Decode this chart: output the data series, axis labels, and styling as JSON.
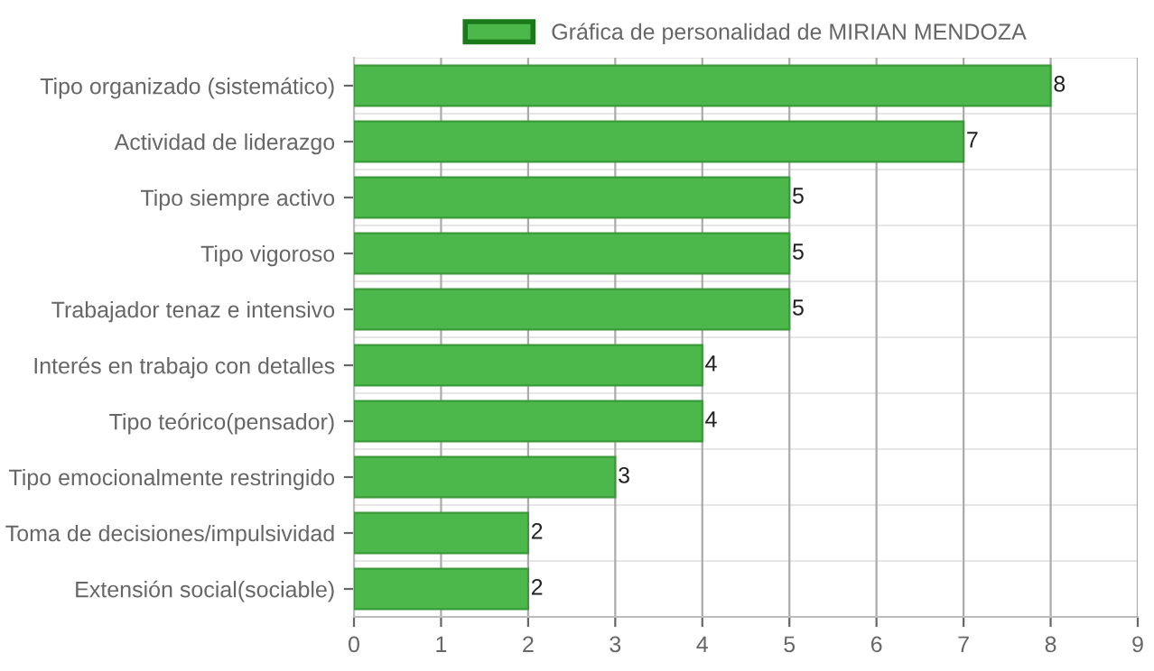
{
  "chart_data": {
    "type": "bar",
    "orientation": "horizontal",
    "categories": [
      "Tipo organizado (sistemático)",
      "Actividad de liderazgo",
      "Tipo siempre activo",
      "Tipo vigoroso",
      "Trabajador tenaz e intensivo",
      "Interés en trabajo con detalles",
      "Tipo teórico(pensador)",
      "Tipo emocionalmente restringido",
      "Toma de decisiones/impulsividad",
      "Extensión social(sociable)"
    ],
    "series": [
      {
        "name": "Gráfica de personalidad de MIRIAN MENDOZA",
        "color": "#4cb84c",
        "values": [
          8,
          7,
          5,
          5,
          5,
          4,
          4,
          3,
          2,
          2
        ]
      }
    ],
    "xlim": [
      0,
      9
    ],
    "xticks": [
      0,
      1,
      2,
      3,
      4,
      5,
      6,
      7,
      8,
      9
    ],
    "grid": true,
    "legend": "top",
    "data_labels": true
  }
}
